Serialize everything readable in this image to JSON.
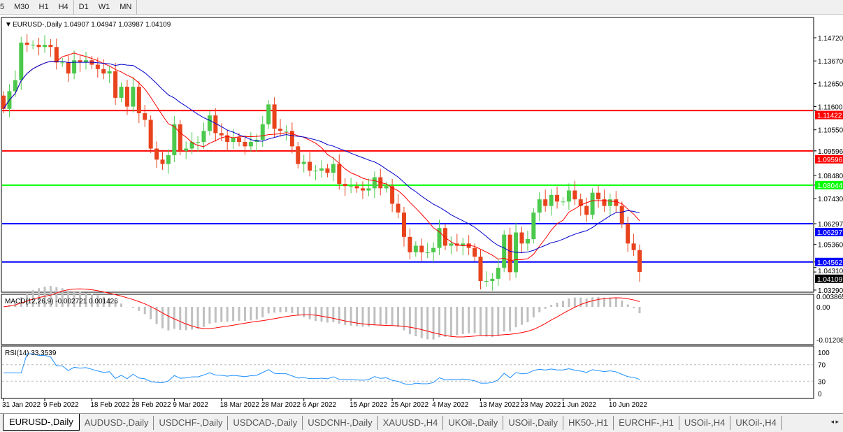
{
  "toolbar": {
    "timeframes": [
      "5",
      "M30",
      "H1",
      "H4",
      "D1",
      "W1",
      "MN"
    ],
    "active": "D1"
  },
  "main_panel": {
    "title": "EURUSD-,Daily",
    "ohlc": "1.04907 1.04947 1.03987 1.04109"
  },
  "macd_panel": {
    "title": "MACD(12,26,9) -0.002721 0.001426",
    "scale": [
      "0.003865",
      "0.00",
      "-0.01208"
    ]
  },
  "rsi_panel": {
    "title": "RSI(14) 33.3539",
    "scale": [
      "100",
      "70",
      "30",
      "0"
    ]
  },
  "price_axis": [
    "1.14720",
    "1.13670",
    "1.12650",
    "1.11600",
    "1.10550",
    "1.09596",
    "1.08480",
    "1.07430",
    "1.06297",
    "1.05360",
    "1.04310",
    "1.03290"
  ],
  "levels": [
    {
      "price": "1.11422",
      "color": "#ff0000"
    },
    {
      "price": "1.09596",
      "color": "#ff0000"
    },
    {
      "price": "1.08044",
      "color": "#00ff00"
    },
    {
      "price": "1.06297",
      "color": "#0000ff"
    },
    {
      "price": "1.04562",
      "color": "#0000ff"
    }
  ],
  "current_price": "1.04109",
  "chart_data": {
    "type": "candlestick",
    "symbol": "EURUSD-,Daily",
    "ylim": [
      1.0329,
      1.1472
    ],
    "closes": [
      1.115,
      1.123,
      1.128,
      1.145,
      1.144,
      1.144,
      1.143,
      1.144,
      1.143,
      1.136,
      1.136,
      1.131,
      1.137,
      1.136,
      1.137,
      1.135,
      1.133,
      1.131,
      1.132,
      1.12,
      1.125,
      1.116,
      1.125,
      1.113,
      1.11,
      1.097,
      1.092,
      1.09,
      1.094,
      1.108,
      1.096,
      1.097,
      1.1,
      1.1,
      1.105,
      1.112,
      1.104,
      1.103,
      1.1,
      1.102,
      1.1,
      1.098,
      1.1,
      1.101,
      1.108,
      1.117,
      1.106,
      1.105,
      1.105,
      1.098,
      1.09,
      1.091,
      1.087,
      1.087,
      1.088,
      1.086,
      1.09,
      1.081,
      1.08,
      1.08,
      1.079,
      1.078,
      1.079,
      1.084,
      1.079,
      1.08,
      1.072,
      1.068,
      1.057,
      1.05,
      1.053,
      1.05,
      1.05,
      1.052,
      1.061,
      1.053,
      1.054,
      1.053,
      1.054,
      1.052,
      1.048,
      1.037,
      1.037,
      1.038,
      1.043,
      1.058,
      1.041,
      1.059,
      1.054,
      1.056,
      1.068,
      1.074,
      1.071,
      1.076,
      1.073,
      1.073,
      1.078,
      1.074,
      1.071,
      1.067,
      1.077,
      1.074,
      1.071,
      1.074,
      1.071,
      1.063,
      1.054,
      1.051,
      1.04109
    ],
    "date_labels": [
      {
        "label": "31 Jan 2022",
        "bar": 0
      },
      {
        "label": "9 Feb 2022",
        "bar": 7
      },
      {
        "label": "18 Feb 2022",
        "bar": 15
      },
      {
        "label": "28 Feb 2022",
        "bar": 22
      },
      {
        "label": "9 Mar 2022",
        "bar": 29
      },
      {
        "label": "18 Mar 2022",
        "bar": 37
      },
      {
        "label": "28 Mar 2022",
        "bar": 44
      },
      {
        "label": "6 Apr 2022",
        "bar": 51
      },
      {
        "label": "15 Apr 2022",
        "bar": 59
      },
      {
        "label": "25 Apr 2022",
        "bar": 66
      },
      {
        "label": "4 May 2022",
        "bar": 73
      },
      {
        "label": "13 May 2022",
        "bar": 81
      },
      {
        "label": "23 May 2022",
        "bar": 88
      },
      {
        "label": "1 Jun 2022",
        "bar": 95
      },
      {
        "label": "10 Jun 2022",
        "bar": 103
      }
    ],
    "colors": {
      "bull": "#4cc94c",
      "bear": "#e8431c",
      "ma_fast": "#ff0000",
      "ma_slow": "#0000cc",
      "macd_hist": "#c0c0c0",
      "macd_signal": "#ff0000",
      "rsi": "#1e90ff"
    }
  },
  "tabs": [
    "EURUSD-,Daily",
    "AUDUSD-,Daily",
    "USDCHF-,Daily",
    "USDCAD-,Daily",
    "USDCNH-,Daily",
    "XAUUSD-,H4",
    "UKOil-,Daily",
    "USOil-,Daily",
    "HK50-,H1",
    "EURCHF-,H1",
    "USOil-,H4",
    "UKOil-,H4"
  ],
  "tab_arrows": "◂ ▸"
}
